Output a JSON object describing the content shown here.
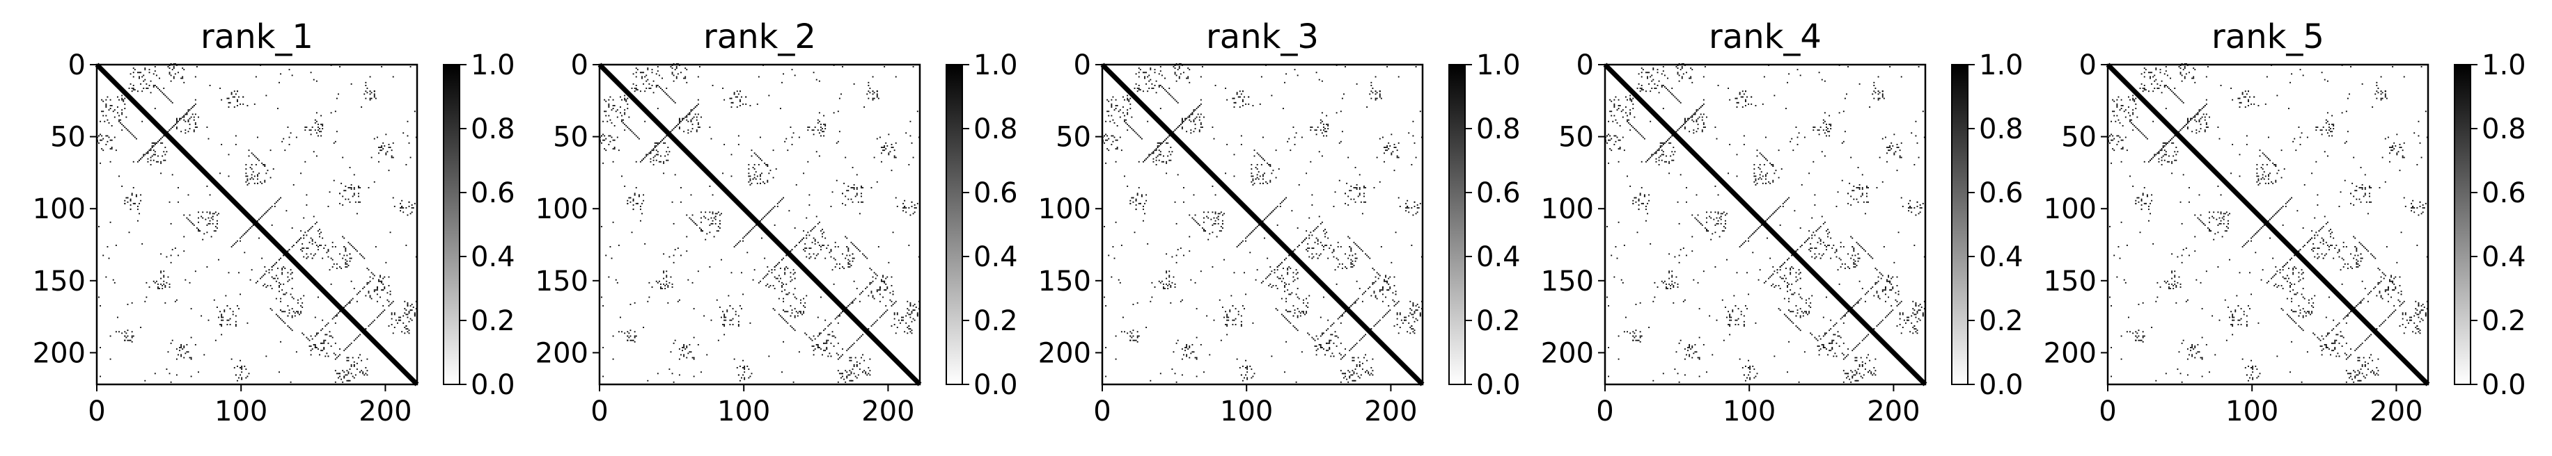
{
  "colors": {
    "background": "#ffffff",
    "frame": "#000000",
    "contact": "#000000",
    "colormap_low": "#ffffff",
    "colormap_high": "#000000"
  },
  "chart_data": [
    {
      "type": "heatmap",
      "title": "rank_1",
      "xlabel": "",
      "ylabel": "",
      "xlim": [
        0,
        222
      ],
      "ylim": [
        222,
        0
      ],
      "xticks": [
        "0",
        "100",
        "200"
      ],
      "yticks": [
        "0",
        "50",
        "100",
        "150",
        "200"
      ],
      "colorbar_ticks": [
        "0.0",
        "0.2",
        "0.4",
        "0.6",
        "0.8",
        "1.0"
      ],
      "colormap": "Greys",
      "vmin": 0.0,
      "vmax": 1.0
    },
    {
      "type": "heatmap",
      "title": "rank_2",
      "xlabel": "",
      "ylabel": "",
      "xlim": [
        0,
        222
      ],
      "ylim": [
        222,
        0
      ],
      "xticks": [
        "0",
        "100",
        "200"
      ],
      "yticks": [
        "0",
        "50",
        "100",
        "150",
        "200"
      ],
      "colorbar_ticks": [
        "0.0",
        "0.2",
        "0.4",
        "0.6",
        "0.8",
        "1.0"
      ],
      "colormap": "Greys",
      "vmin": 0.0,
      "vmax": 1.0
    },
    {
      "type": "heatmap",
      "title": "rank_3",
      "xlabel": "",
      "ylabel": "",
      "xlim": [
        0,
        222
      ],
      "ylim": [
        222,
        0
      ],
      "xticks": [
        "0",
        "100",
        "200"
      ],
      "yticks": [
        "0",
        "50",
        "100",
        "150",
        "200"
      ],
      "colorbar_ticks": [
        "0.0",
        "0.2",
        "0.4",
        "0.6",
        "0.8",
        "1.0"
      ],
      "colormap": "Greys",
      "vmin": 0.0,
      "vmax": 1.0
    },
    {
      "type": "heatmap",
      "title": "rank_4",
      "xlabel": "",
      "ylabel": "",
      "xlim": [
        0,
        222
      ],
      "ylim": [
        222,
        0
      ],
      "xticks": [
        "0",
        "100",
        "200"
      ],
      "yticks": [
        "0",
        "50",
        "100",
        "150",
        "200"
      ],
      "colorbar_ticks": [
        "0.0",
        "0.2",
        "0.4",
        "0.6",
        "0.8",
        "1.0"
      ],
      "colormap": "Greys",
      "vmin": 0.0,
      "vmax": 1.0
    },
    {
      "type": "heatmap",
      "title": "rank_5",
      "xlabel": "",
      "ylabel": "",
      "xlim": [
        0,
        222
      ],
      "ylim": [
        222,
        0
      ],
      "xticks": [
        "0",
        "100",
        "200"
      ],
      "yticks": [
        "0",
        "50",
        "100",
        "150",
        "200"
      ],
      "colorbar_ticks": [
        "0.0",
        "0.2",
        "0.4",
        "0.6",
        "0.8",
        "1.0"
      ],
      "colormap": "Greys",
      "vmin": 0.0,
      "vmax": 1.0
    }
  ]
}
